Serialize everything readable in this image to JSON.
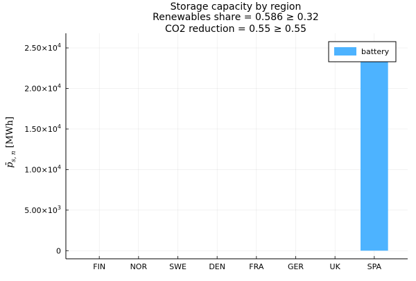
{
  "chart_data": {
    "type": "bar",
    "title": [
      "Storage capacity by region",
      "Renewables share = 0.586 ≥ 0.32",
      "CO2 reduction = 0.55 ≥ 0.55"
    ],
    "xlabel": "",
    "ylabel": "p̄ s, n [MWh]",
    "categories": [
      "FIN",
      "NOR",
      "SWE",
      "DEN",
      "FRA",
      "GER",
      "UK",
      "SPA"
    ],
    "series": [
      {
        "name": "battery",
        "color": "#4db3ff",
        "values": [
          0,
          0,
          0,
          0,
          0,
          0,
          0,
          25800
        ]
      }
    ],
    "ylim": [
      -1000,
      26800
    ],
    "yticks": [
      {
        "value": 0,
        "mantissa": "0",
        "exponent": ""
      },
      {
        "value": 5000,
        "mantissa": "5.00×10",
        "exponent": "3"
      },
      {
        "value": 10000,
        "mantissa": "1.00×10",
        "exponent": "4"
      },
      {
        "value": 15000,
        "mantissa": "1.50×10",
        "exponent": "4"
      },
      {
        "value": 20000,
        "mantissa": "2.00×10",
        "exponent": "4"
      },
      {
        "value": 25000,
        "mantissa": "2.50×10",
        "exponent": "4"
      }
    ],
    "grid": true,
    "legend_position": "top-right"
  }
}
